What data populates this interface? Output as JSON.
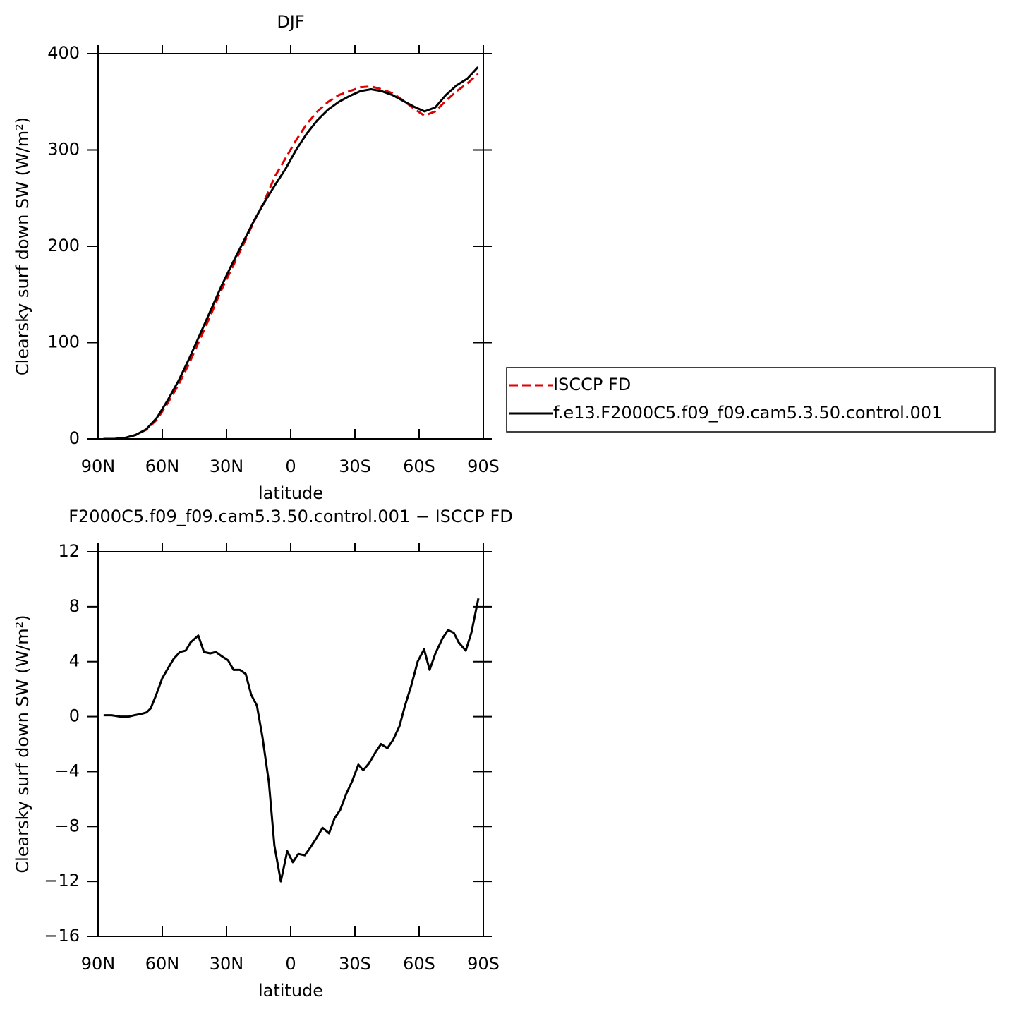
{
  "chart_data": [
    {
      "type": "line",
      "title": "DJF",
      "xlabel": "latitude",
      "ylabel": "Clearsky surf down SW (W/m²)",
      "x": [
        87.5,
        82.5,
        77.5,
        72.5,
        67.5,
        62.5,
        57.5,
        52.5,
        47.5,
        42.5,
        37.5,
        32.5,
        27.5,
        22.5,
        17.5,
        12.5,
        7.5,
        2.5,
        -2.5,
        -7.5,
        -12.5,
        -17.5,
        -22.5,
        -27.5,
        -32.5,
        -37.5,
        -42.5,
        -47.5,
        -52.5,
        -57.5,
        -62.5,
        -67.5,
        -72.5,
        -77.5,
        -82.5,
        -87.5
      ],
      "series": [
        {
          "name": "ISCCP FD",
          "color": "#e00000",
          "style": "dashed",
          "values": [
            0,
            0,
            1,
            4,
            9.5,
            20,
            37,
            56,
            78,
            103,
            128,
            154,
            177,
            200,
            224,
            246,
            272,
            291,
            310,
            327,
            340,
            350,
            357,
            361,
            365,
            366,
            363,
            359,
            351.5,
            343,
            335.5,
            340,
            351,
            361,
            369,
            379
          ]
        },
        {
          "name": "f.e13.F2000C5.f09_f09.cam5.3.50.control.001",
          "color": "#000000",
          "style": "solid",
          "values": [
            0,
            0,
            1,
            4,
            10,
            22,
            40,
            60,
            83,
            108,
            133,
            158,
            181,
            203,
            225,
            245,
            263,
            280,
            300,
            317,
            331,
            342,
            350,
            356,
            361,
            363,
            361,
            357,
            351,
            345,
            340,
            344,
            357,
            367,
            374,
            386
          ]
        }
      ],
      "xlim": [
        90,
        -90
      ],
      "xticks": [
        {
          "value": 90,
          "label": "90N"
        },
        {
          "value": 60,
          "label": "60N"
        },
        {
          "value": 30,
          "label": "30N"
        },
        0,
        {
          "value": -30,
          "label": "30S"
        },
        {
          "value": -60,
          "label": "60S"
        },
        {
          "value": -90,
          "label": "90S"
        }
      ],
      "ylim": [
        0,
        400
      ],
      "yticks": [
        0,
        100,
        200,
        300,
        400
      ],
      "legend": "right"
    },
    {
      "type": "line",
      "title": "F2000C5.f09_f09.cam5.3.50.control.001 − ISCCP FD",
      "xlabel": "latitude",
      "ylabel": "Clearsky surf down SW (W/m²)",
      "x": [
        87.4,
        83.7,
        79.7,
        75.7,
        73.0,
        69.7,
        67.4,
        65.4,
        62.8,
        60.0,
        57.4,
        54.7,
        51.8,
        49.1,
        46.8,
        43.2,
        40.5,
        37.6,
        34.9,
        32.3,
        29.3,
        26.7,
        23.7,
        21.0,
        18.5,
        15.8,
        13.2,
        10.2,
        7.6,
        4.6,
        1.6,
        -1.0,
        -3.6,
        -6.6,
        -9.3,
        -12.2,
        -14.9,
        -17.9,
        -20.5,
        -23.1,
        -26.0,
        -28.7,
        -31.6,
        -33.9,
        -36.6,
        -39.6,
        -42.2,
        -45.2,
        -47.8,
        -50.8,
        -53.4,
        -56.4,
        -59.3,
        -62.3,
        -64.9,
        -67.6,
        -70.9,
        -73.5,
        -76.2,
        -78.5,
        -81.8,
        -84.4,
        -87.7
      ],
      "series": [
        {
          "name": "f.e13.F2000C5.f09_f09.cam5.3.50.control.001",
          "color": "#000000",
          "style": "solid",
          "values": [
            0.1,
            0.1,
            0,
            0,
            0.1,
            0.2,
            0.3,
            0.6,
            1.6,
            2.8,
            3.5,
            4.2,
            4.7,
            4.8,
            5.4,
            5.9,
            4.7,
            4.6,
            4.7,
            4.4,
            4.1,
            3.4,
            3.4,
            3.1,
            1.6,
            0.8,
            -1.5,
            -4.8,
            -9.4,
            -12,
            -9.8,
            -10.6,
            -10,
            -10.1,
            -9.5,
            -8.8,
            -8.1,
            -8.5,
            -7.4,
            -6.8,
            -5.6,
            -4.7,
            -3.5,
            -3.9,
            -3.4,
            -2.6,
            -2.0,
            -2.3,
            -1.7,
            -0.7,
            0.8,
            2.3,
            4.0,
            4.9,
            3.4,
            4.6,
            5.7,
            6.3,
            6.1,
            5.4,
            4.8,
            6.1,
            8.6
          ]
        }
      ],
      "xlim": [
        90,
        -90
      ],
      "xticks": [
        {
          "value": 90,
          "label": "90N"
        },
        {
          "value": 60,
          "label": "60N"
        },
        {
          "value": 30,
          "label": "30N"
        },
        0,
        {
          "value": -30,
          "label": "30S"
        },
        {
          "value": -60,
          "label": "60S"
        },
        {
          "value": -90,
          "label": "90S"
        }
      ],
      "ylim": [
        -16,
        12
      ],
      "yticks": [
        {
          "value": -16,
          "label": "−16"
        },
        {
          "value": -12,
          "label": "−12"
        },
        {
          "value": -8,
          "label": "−8"
        },
        {
          "value": -4,
          "label": "−4"
        },
        0,
        4,
        8,
        12
      ]
    }
  ]
}
